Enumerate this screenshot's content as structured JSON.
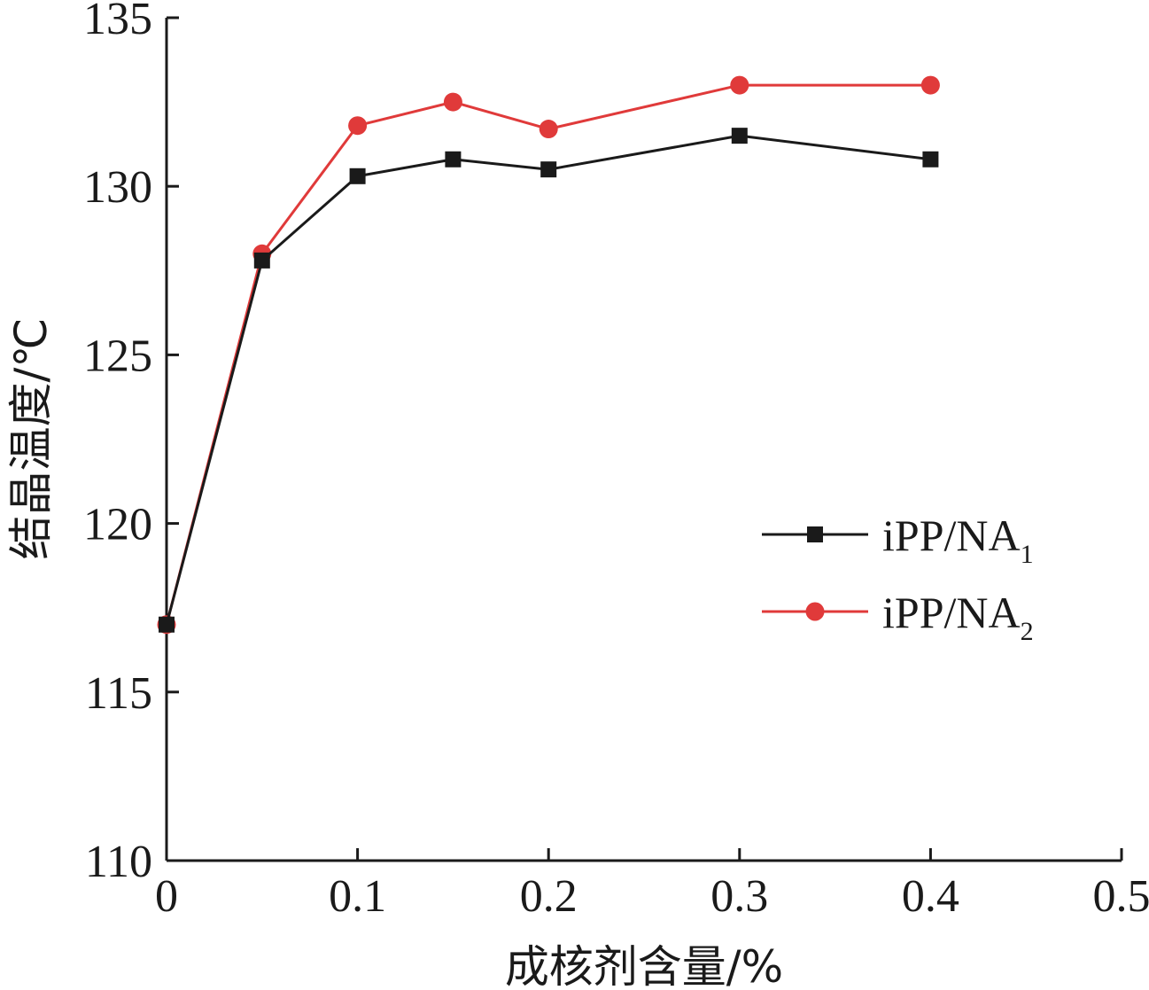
{
  "chart_data": {
    "type": "line",
    "xlabel": "成核剂含量/%",
    "ylabel": "结晶温度/℃",
    "xlim": [
      0,
      0.5
    ],
    "ylim": [
      110,
      135
    ],
    "xticks": [
      "0",
      "0.1",
      "0.2",
      "0.3",
      "0.4",
      "0.5"
    ],
    "yticks": [
      "110",
      "115",
      "120",
      "125",
      "130",
      "135"
    ],
    "grid": false,
    "legend_position": "right-middle",
    "series": [
      {
        "name": "iPP/NA1",
        "label_main": "iPP/NA",
        "label_sub": "1",
        "color": "#1a1a1a",
        "marker": "square",
        "x": [
          0,
          0.05,
          0.1,
          0.15,
          0.2,
          0.3,
          0.4
        ],
        "y": [
          117.0,
          127.8,
          130.3,
          130.8,
          130.5,
          131.5,
          130.8
        ]
      },
      {
        "name": "iPP/NA2",
        "label_main": "iPP/NA",
        "label_sub": "2",
        "color": "#e03a3a",
        "marker": "circle",
        "x": [
          0,
          0.05,
          0.1,
          0.15,
          0.2,
          0.3,
          0.4
        ],
        "y": [
          117.0,
          128.0,
          131.8,
          132.5,
          131.7,
          133.0,
          133.0
        ]
      }
    ]
  }
}
